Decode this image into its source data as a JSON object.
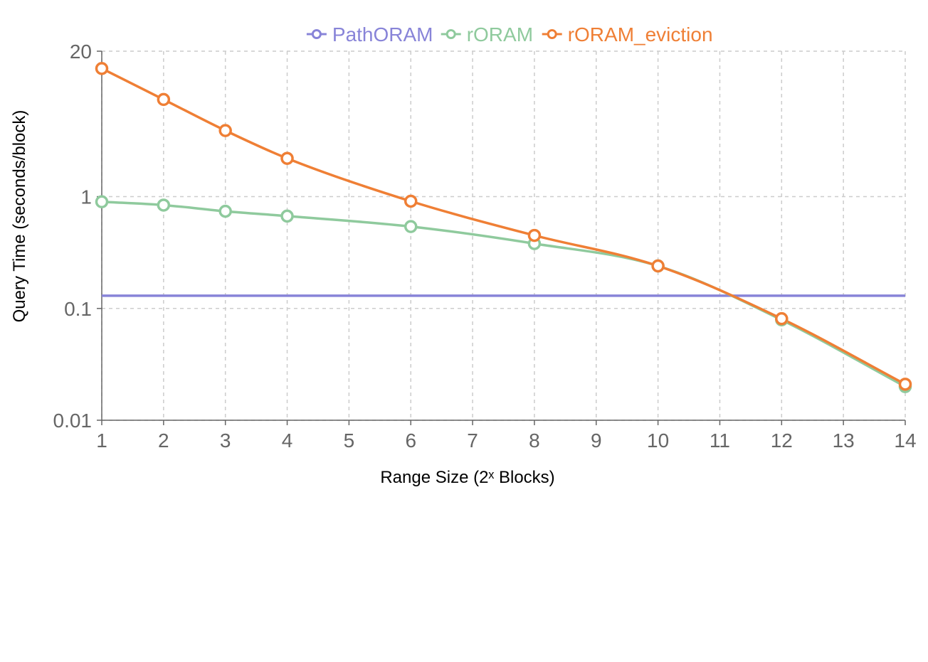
{
  "chart_data": {
    "type": "line",
    "title": "",
    "xlabel": "Range Size (2ˣ Blocks)",
    "ylabel": "Query Time (seconds/block)",
    "x_ticks": [
      "1",
      "2",
      "3",
      "4",
      "5",
      "6",
      "7",
      "8",
      "9",
      "10",
      "11",
      "12",
      "13",
      "14"
    ],
    "xlim": [
      1,
      14
    ],
    "y_scale": "log",
    "ylim": [
      0.01,
      20
    ],
    "y_ticks": [
      "20",
      "1",
      "0.1",
      "0.01"
    ],
    "grid": true,
    "legend_position": "top-center",
    "series": [
      {
        "name": "PathORAM",
        "color": "#8884d8",
        "markers": false,
        "x": [
          1,
          14
        ],
        "y": [
          0.13,
          0.13
        ]
      },
      {
        "name": "rORAM",
        "color": "#8fca9d",
        "markers": true,
        "x": [
          1,
          2,
          3,
          4,
          6,
          8,
          10,
          12,
          14
        ],
        "y": [
          0.9,
          0.84,
          0.74,
          0.67,
          0.54,
          0.38,
          0.24,
          0.079,
          0.02
        ]
      },
      {
        "name": "rORAM_eviction",
        "color": "#ef7f35",
        "markers": true,
        "x": [
          1,
          2,
          3,
          4,
          6,
          8,
          10,
          12,
          14
        ],
        "y": [
          14,
          7.4,
          3.9,
          2.2,
          0.91,
          0.45,
          0.24,
          0.081,
          0.021
        ]
      }
    ]
  }
}
